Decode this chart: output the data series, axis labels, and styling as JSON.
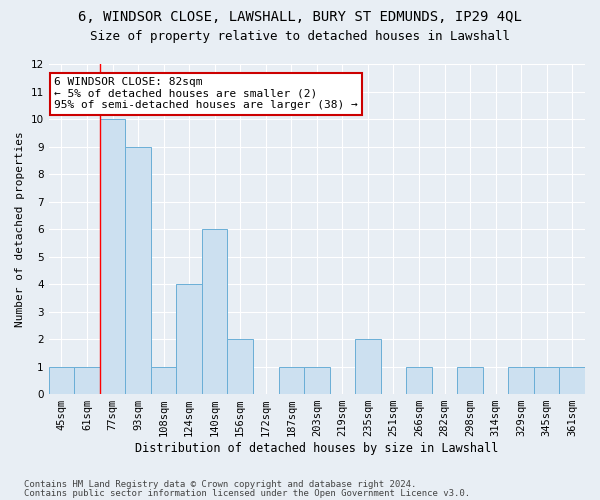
{
  "title1": "6, WINDSOR CLOSE, LAWSHALL, BURY ST EDMUNDS, IP29 4QL",
  "title2": "Size of property relative to detached houses in Lawshall",
  "xlabel": "Distribution of detached houses by size in Lawshall",
  "ylabel": "Number of detached properties",
  "categories": [
    "45sqm",
    "61sqm",
    "77sqm",
    "93sqm",
    "108sqm",
    "124sqm",
    "140sqm",
    "156sqm",
    "172sqm",
    "187sqm",
    "203sqm",
    "219sqm",
    "235sqm",
    "251sqm",
    "266sqm",
    "282sqm",
    "298sqm",
    "314sqm",
    "329sqm",
    "345sqm",
    "361sqm"
  ],
  "values": [
    1,
    1,
    10,
    9,
    1,
    4,
    6,
    2,
    0,
    1,
    1,
    0,
    2,
    0,
    1,
    0,
    1,
    0,
    1,
    1,
    1
  ],
  "bar_color": "#cce0f0",
  "bar_edge_color": "#6aaed6",
  "red_line_index": 2,
  "ylim": [
    0,
    12
  ],
  "yticks": [
    0,
    1,
    2,
    3,
    4,
    5,
    6,
    7,
    8,
    9,
    10,
    11,
    12
  ],
  "annotation_text": "6 WINDSOR CLOSE: 82sqm\n← 5% of detached houses are smaller (2)\n95% of semi-detached houses are larger (38) →",
  "annotation_box_color": "#ffffff",
  "annotation_box_edge_color": "#cc0000",
  "footer1": "Contains HM Land Registry data © Crown copyright and database right 2024.",
  "footer2": "Contains public sector information licensed under the Open Government Licence v3.0.",
  "background_color": "#e8eef4",
  "grid_color": "#ffffff",
  "title1_fontsize": 10,
  "title2_fontsize": 9,
  "xlabel_fontsize": 8.5,
  "ylabel_fontsize": 8,
  "tick_fontsize": 7.5,
  "annotation_fontsize": 8,
  "footer_fontsize": 6.5
}
